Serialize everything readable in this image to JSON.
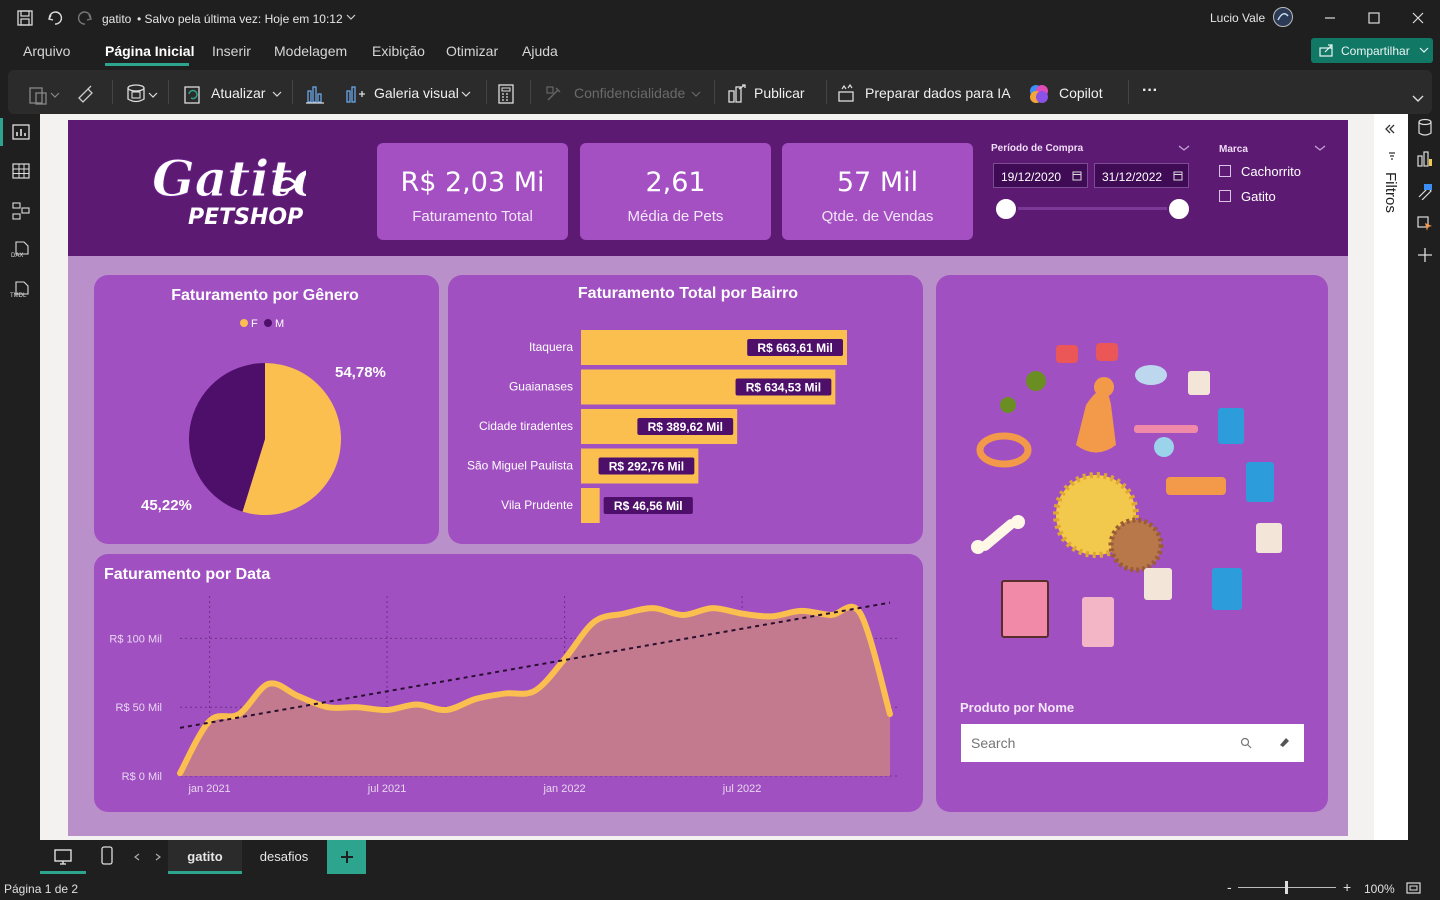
{
  "titlebar": {
    "file_name": "gatito",
    "save_status": "• Salvo pela última vez: Hoje em 10:12",
    "user_name": "Lucio Vale"
  },
  "menu": {
    "items": [
      "Arquivo",
      "Página Inicial",
      "Inserir",
      "Modelagem",
      "Exibição",
      "Otimizar",
      "Ajuda"
    ],
    "active": "Página Inicial",
    "share_label": "Compartilhar"
  },
  "ribbon": {
    "refresh": "Atualizar",
    "visual_gallery": "Galeria visual",
    "sensitivity": "Confidencialidade",
    "publish": "Publicar",
    "prepare_ai": "Preparar dados para IA",
    "copilot": "Copilot",
    "more": "···"
  },
  "left_rail": {
    "dax_label": "DAX",
    "tmdl_label": "TMDL"
  },
  "report": {
    "logo_title": "Gatito",
    "logo_subtitle": "PETSHOP",
    "kpis": [
      {
        "value": "R$ 2,03 Mi",
        "label": "Faturamento Total"
      },
      {
        "value": "2,61",
        "label": "Média de Pets"
      },
      {
        "value": "57 Mil",
        "label": "Qtde. de Vendas"
      }
    ],
    "date_filter": {
      "label": "Período de Compra",
      "start": "19/12/2020",
      "end": "31/12/2022"
    },
    "brand_filter": {
      "label": "Marca",
      "options": [
        "Cachorrito",
        "Gatito"
      ]
    },
    "product_search": {
      "title": "Produto por Nome",
      "placeholder": "Search"
    }
  },
  "chart_data": [
    {
      "type": "pie",
      "title": "Faturamento por Gênero",
      "legend": [
        "F",
        "M"
      ],
      "values": [
        54.78,
        45.22
      ],
      "data_labels": [
        "54,78%",
        "45,22%"
      ],
      "colors": {
        "F": "#fbbf4f",
        "M": "#4e0f6b"
      },
      "legend_position": "top"
    },
    {
      "type": "bar",
      "orientation": "horizontal",
      "title": "Faturamento Total por Bairro",
      "categories": [
        "Itaquera",
        "Guaianases",
        "Cidade tiradentes",
        "São Miguel Paulista",
        "Vila Prudente"
      ],
      "values": [
        663.61,
        634.53,
        389.62,
        292.76,
        46.56
      ],
      "data_labels": [
        "R$ 663,61 Mil",
        "R$ 634,53 Mil",
        "R$ 389,62 Mil",
        "R$ 292,76 Mil",
        "R$ 46,56 Mil"
      ],
      "unit": "Mil",
      "color": "#fbbf4f"
    },
    {
      "type": "area",
      "title": "Faturamento por Data",
      "x_ticks": [
        "jan 2021",
        "jul 2021",
        "jan 2022",
        "jul 2022"
      ],
      "y_ticks": [
        "R$ 0 Mil",
        "R$ 50 Mil",
        "R$ 100 Mil"
      ],
      "ylim": [
        0,
        125
      ],
      "x": [
        "2020-12",
        "2021-01",
        "2021-02",
        "2021-03",
        "2021-04",
        "2021-05",
        "2021-06",
        "2021-07",
        "2021-08",
        "2021-09",
        "2021-10",
        "2021-11",
        "2021-12",
        "2022-01",
        "2022-02",
        "2022-03",
        "2022-04",
        "2022-05",
        "2022-06",
        "2022-07",
        "2022-08",
        "2022-09",
        "2022-10",
        "2022-11",
        "2022-12"
      ],
      "series": [
        {
          "values": [
            2,
            40,
            45,
            67,
            58,
            50,
            50,
            48,
            52,
            48,
            56,
            60,
            62,
            85,
            112,
            118,
            122,
            117,
            122,
            118,
            116,
            120,
            117,
            118,
            45
          ]
        }
      ],
      "trendline": {
        "start": 35,
        "end": 126
      },
      "line_color": "#fbbf4f",
      "fill_color": "#c47a8e",
      "grid": true
    }
  ],
  "page_tabs": [
    "gatito",
    "desafios"
  ],
  "active_tab": "gatito",
  "filters_label": "Filtros",
  "status": {
    "page": "Página 1 de 2",
    "zoom": "100%"
  }
}
